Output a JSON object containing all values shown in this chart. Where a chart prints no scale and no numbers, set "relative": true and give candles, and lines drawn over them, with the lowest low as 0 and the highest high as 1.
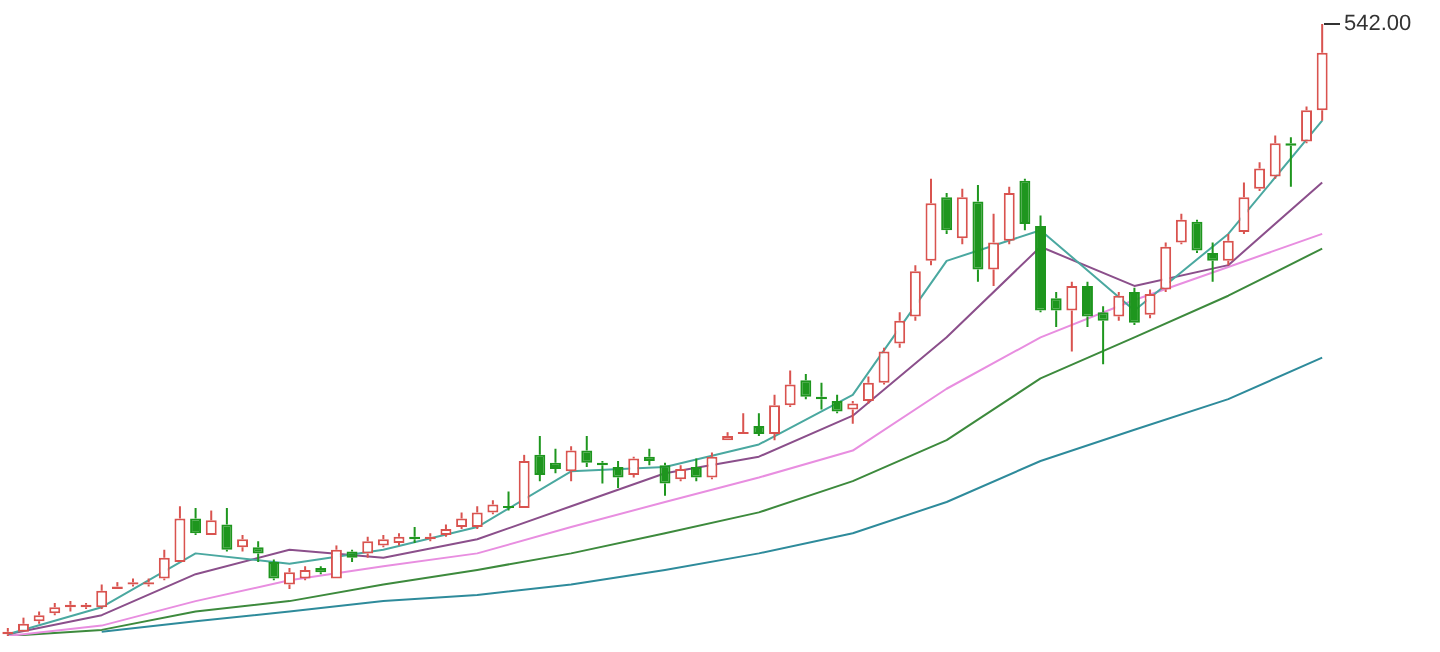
{
  "chart_data": {
    "type": "candlestick",
    "relative": true,
    "categories": [
      null,
      null,
      null,
      null,
      null,
      null,
      null,
      null,
      null,
      null,
      null,
      null,
      null,
      null,
      null,
      null,
      null,
      null,
      null,
      null,
      null,
      null,
      null,
      null,
      null,
      null,
      null,
      null,
      null,
      null,
      null,
      null,
      null,
      null,
      null,
      null,
      null,
      null,
      null,
      null,
      null,
      null,
      null,
      null,
      null,
      null,
      null,
      null,
      null,
      null,
      null,
      null,
      null,
      null,
      null,
      null,
      null,
      null,
      null,
      null,
      null,
      null,
      null,
      null,
      null,
      null,
      null,
      null,
      null,
      null,
      null,
      null,
      null,
      null,
      null,
      null,
      null,
      null,
      null,
      null,
      null,
      null,
      null,
      null,
      null
    ],
    "series": [
      {
        "ohlc": [
          [
            0.003,
            0.013,
            0,
            0.007
          ],
          [
            0.007,
            0.03,
            0.007,
            0.02
          ],
          [
            0.024,
            0.04,
            0.02,
            0.034
          ],
          [
            0.037,
            0.054,
            0.034,
            0.047
          ],
          [
            0.047,
            0.057,
            0.04,
            0.051
          ],
          [
            0.047,
            0.054,
            0.044,
            0.051
          ],
          [
            0.047,
            0.084,
            0.044,
            0.074
          ],
          [
            0.077,
            0.088,
            0.077,
            0.081
          ],
          [
            0.084,
            0.094,
            0.081,
            0.088
          ],
          [
            0.084,
            0.094,
            0.081,
            0.088
          ],
          [
            0.094,
            0.141,
            0.091,
            0.128
          ],
          [
            0.121,
            0.212,
            0.121,
            0.192
          ],
          [
            0.192,
            0.209,
            0.165,
            0.168
          ],
          [
            0.165,
            0.205,
            0.165,
            0.189
          ],
          [
            0.182,
            0.209,
            0.138,
            0.141
          ],
          [
            0.145,
            0.165,
            0.138,
            0.158
          ],
          [
            0.145,
            0.155,
            0.121,
            0.135
          ],
          [
            0.121,
            0.125,
            0.091,
            0.094
          ],
          [
            0.084,
            0.111,
            0.077,
            0.104
          ],
          [
            0.094,
            0.114,
            0.091,
            0.108
          ],
          [
            0.111,
            0.114,
            0.101,
            0.104
          ],
          [
            0.094,
            0.148,
            0.094,
            0.141
          ],
          [
            0.138,
            0.141,
            0.121,
            0.128
          ],
          [
            0.135,
            0.162,
            0.128,
            0.155
          ],
          [
            0.148,
            0.165,
            0.145,
            0.158
          ],
          [
            0.152,
            0.168,
            0.148,
            0.162
          ],
          [
            0.162,
            0.178,
            0.152,
            0.158
          ],
          [
            0.158,
            0.168,
            0.155,
            0.162
          ],
          [
            0.165,
            0.182,
            0.162,
            0.175
          ],
          [
            0.178,
            0.202,
            0.175,
            0.192
          ],
          [
            0.178,
            0.212,
            0.175,
            0.202
          ],
          [
            0.202,
            0.222,
            0.199,
            0.215
          ],
          [
            0.212,
            0.236,
            0.205,
            0.209
          ],
          [
            0.209,
            0.296,
            0.209,
            0.286
          ],
          [
            0.296,
            0.327,
            0.253,
            0.263
          ],
          [
            0.283,
            0.306,
            0.266,
            0.273
          ],
          [
            0.269,
            0.31,
            0.253,
            0.303
          ],
          [
            0.303,
            0.327,
            0.276,
            0.283
          ],
          [
            0.283,
            0.286,
            0.249,
            0.279
          ],
          [
            0.276,
            0.286,
            0.242,
            0.259
          ],
          [
            0.263,
            0.293,
            0.259,
            0.29
          ],
          [
            0.293,
            0.306,
            0.279,
            0.286
          ],
          [
            0.279,
            0.283,
            0.229,
            0.249
          ],
          [
            0.256,
            0.279,
            0.253,
            0.273
          ],
          [
            0.276,
            0.29,
            0.253,
            0.259
          ],
          [
            0.259,
            0.3,
            0.256,
            0.293
          ],
          [
            0.32,
            0.333,
            0.32,
            0.327
          ],
          [
            0.33,
            0.364,
            0.33,
            0.333
          ],
          [
            0.343,
            0.364,
            0.327,
            0.33
          ],
          [
            0.33,
            0.394,
            0.32,
            0.377
          ],
          [
            0.377,
            0.434,
            0.374,
            0.411
          ],
          [
            0.418,
            0.428,
            0.387,
            0.391
          ],
          [
            0.391,
            0.414,
            0.37,
            0.387
          ],
          [
            0.384,
            0.394,
            0.364,
            0.367
          ],
          [
            0.37,
            0.384,
            0.347,
            0.38
          ],
          [
            0.384,
            0.424,
            0.38,
            0.414
          ],
          [
            0.414,
            0.471,
            0.411,
            0.465
          ],
          [
            0.478,
            0.529,
            0.471,
            0.515
          ],
          [
            0.522,
            0.606,
            0.515,
            0.596
          ],
          [
            0.613,
            0.747,
            0.606,
            0.707
          ],
          [
            0.717,
            0.724,
            0.657,
            0.663
          ],
          [
            0.65,
            0.731,
            0.64,
            0.717
          ],
          [
            0.71,
            0.737,
            0.579,
            0.599
          ],
          [
            0.599,
            0.69,
            0.572,
            0.643
          ],
          [
            0.646,
            0.734,
            0.64,
            0.724
          ],
          [
            0.744,
            0.747,
            0.663,
            0.673
          ],
          [
            0.67,
            0.687,
            0.529,
            0.532
          ],
          [
            0.552,
            0.562,
            0.505,
            0.532
          ],
          [
            0.532,
            0.579,
            0.465,
            0.572
          ],
          [
            0.572,
            0.579,
            0.505,
            0.522
          ],
          [
            0.529,
            0.539,
            0.444,
            0.515
          ],
          [
            0.522,
            0.562,
            0.515,
            0.556
          ],
          [
            0.562,
            0.569,
            0.508,
            0.512
          ],
          [
            0.525,
            0.566,
            0.519,
            0.559
          ],
          [
            0.566,
            0.643,
            0.562,
            0.636
          ],
          [
            0.643,
            0.69,
            0.64,
            0.68
          ],
          [
            0.677,
            0.68,
            0.626,
            0.63
          ],
          [
            0.626,
            0.643,
            0.579,
            0.613
          ],
          [
            0.613,
            0.657,
            0.606,
            0.646
          ],
          [
            0.66,
            0.741,
            0.657,
            0.717
          ],
          [
            0.731,
            0.774,
            0.727,
            0.764
          ],
          [
            0.751,
            0.818,
            0.747,
            0.805
          ],
          [
            0.805,
            0.815,
            0.734,
            0.801
          ],
          [
            0.808,
            0.865,
            0.805,
            0.859
          ],
          [
            0.859,
            1,
            0.842,
            0.953
          ]
        ],
        "colors": [
          "#d9534f",
          "#d9534f",
          "#d9534f",
          "#d9534f",
          "#d9534f",
          "#d9534f",
          "#d9534f",
          "#d9534f",
          "#d9534f",
          "#d9534f",
          "#d9534f",
          "#d9534f",
          "#1e961e",
          "#d9534f",
          "#1e961e",
          "#d9534f",
          "#1e961e",
          "#1e961e",
          "#d9534f",
          "#d9534f",
          "#1e961e",
          "#d9534f",
          "#1e961e",
          "#d9534f",
          "#d9534f",
          "#d9534f",
          "#1e961e",
          "#d9534f",
          "#d9534f",
          "#d9534f",
          "#d9534f",
          "#d9534f",
          "#1e961e",
          "#d9534f",
          "#1e961e",
          "#1e961e",
          "#d9534f",
          "#1e961e",
          "#1e961e",
          "#1e961e",
          "#d9534f",
          "#1e961e",
          "#1e961e",
          "#d9534f",
          "#1e961e",
          "#d9534f",
          "#d9534f",
          "#d9534f",
          "#1e961e",
          "#d9534f",
          "#d9534f",
          "#1e961e",
          "#1e961e",
          "#1e961e",
          "#d9534f",
          "#d9534f",
          "#d9534f",
          "#d9534f",
          "#d9534f",
          "#d9534f",
          "#1e961e",
          "#d9534f",
          "#1e961e",
          "#d9534f",
          "#d9534f",
          "#1e961e",
          "#1e961e",
          "#1e961e",
          "#d9534f",
          "#1e961e",
          "#1e961e",
          "#d9534f",
          "#1e961e",
          "#d9534f",
          "#d9534f",
          "#d9534f",
          "#1e961e",
          "#1e961e",
          "#d9534f",
          "#d9534f",
          "#d9534f",
          "#d9534f",
          "#1e961e",
          "#d9534f",
          "#d9534f"
        ]
      },
      {
        "type": "line",
        "color": "#4aa8a0",
        "values": [
          0.003,
          null,
          null,
          null,
          null,
          null,
          0.047,
          null,
          null,
          null,
          null,
          null,
          0.135,
          null,
          null,
          null,
          null,
          null,
          0.118,
          null,
          null,
          null,
          null,
          null,
          0.141,
          null,
          null,
          null,
          null,
          null,
          0.178,
          null,
          null,
          null,
          null,
          null,
          0.269,
          null,
          null,
          null,
          null,
          null,
          0.276,
          null,
          null,
          null,
          null,
          null,
          0.313,
          null,
          null,
          null,
          null,
          null,
          0.394,
          null,
          null,
          null,
          null,
          null,
          0.613,
          null,
          null,
          null,
          null,
          null,
          0.663,
          null,
          null,
          null,
          null,
          null,
          0.532,
          null,
          null,
          null,
          null,
          null,
          0.657,
          null,
          null,
          null,
          null,
          null,
          0.842
        ]
      },
      {
        "type": "line",
        "color": "#8b4f8b",
        "values": [
          0.003,
          null,
          null,
          null,
          null,
          null,
          0.034,
          null,
          null,
          null,
          null,
          null,
          0.101,
          null,
          null,
          null,
          null,
          null,
          0.141,
          null,
          null,
          null,
          null,
          null,
          0.128,
          null,
          null,
          null,
          null,
          null,
          0.158,
          null,
          null,
          null,
          null,
          null,
          0.212,
          null,
          null,
          null,
          null,
          null,
          0.266,
          null,
          null,
          null,
          null,
          null,
          0.293,
          null,
          null,
          null,
          null,
          null,
          0.36,
          null,
          null,
          null,
          null,
          null,
          0.488,
          null,
          null,
          null,
          null,
          null,
          0.636,
          null,
          null,
          null,
          null,
          null,
          0.572,
          null,
          null,
          null,
          null,
          null,
          0.606,
          null,
          null,
          null,
          null,
          null,
          0.741
        ]
      },
      {
        "type": "line",
        "color": "#e88ee0",
        "values": [
          0,
          null,
          null,
          null,
          null,
          null,
          0.017,
          null,
          null,
          null,
          null,
          null,
          0.057,
          null,
          null,
          null,
          null,
          null,
          0.091,
          null,
          null,
          null,
          null,
          null,
          0.114,
          null,
          null,
          null,
          null,
          null,
          0.135,
          null,
          null,
          null,
          null,
          null,
          0.178,
          null,
          null,
          null,
          null,
          null,
          0.219,
          null,
          null,
          null,
          null,
          null,
          0.259,
          null,
          null,
          null,
          null,
          null,
          0.303,
          null,
          null,
          null,
          null,
          null,
          0.404,
          null,
          null,
          null,
          null,
          null,
          0.488,
          null,
          null,
          null,
          null,
          null,
          0.549,
          null,
          null,
          null,
          null,
          null,
          0.603,
          null,
          null,
          null,
          null,
          null,
          0.657
        ]
      },
      {
        "type": "line",
        "color": "#3d8a3d",
        "values": [
          0,
          null,
          null,
          null,
          null,
          null,
          0.01,
          null,
          null,
          null,
          null,
          null,
          0.04,
          null,
          null,
          null,
          null,
          null,
          0.057,
          null,
          null,
          null,
          null,
          null,
          0.084,
          null,
          null,
          null,
          null,
          null,
          0.108,
          null,
          null,
          null,
          null,
          null,
          0.135,
          null,
          null,
          null,
          null,
          null,
          0.168,
          null,
          null,
          null,
          null,
          null,
          0.202,
          null,
          null,
          null,
          null,
          null,
          0.253,
          null,
          null,
          null,
          null,
          null,
          0.32,
          null,
          null,
          null,
          null,
          null,
          0.421,
          null,
          null,
          null,
          null,
          null,
          0.488,
          null,
          null,
          null,
          null,
          null,
          0.556,
          null,
          null,
          null,
          null,
          null,
          0.633
        ]
      },
      {
        "type": "line",
        "color": "#2e8b9b",
        "values": [
          null,
          null,
          null,
          null,
          null,
          null,
          0.007,
          null,
          null,
          null,
          null,
          null,
          0.024,
          null,
          null,
          null,
          null,
          null,
          0.04,
          null,
          null,
          null,
          null,
          null,
          0.057,
          null,
          null,
          null,
          null,
          null,
          0.067,
          null,
          null,
          null,
          null,
          null,
          0.084,
          null,
          null,
          null,
          null,
          null,
          0.108,
          null,
          null,
          null,
          null,
          null,
          0.135,
          null,
          null,
          null,
          null,
          null,
          0.168,
          null,
          null,
          null,
          null,
          null,
          0.219,
          null,
          null,
          null,
          null,
          null,
          0.286,
          null,
          null,
          null,
          null,
          null,
          0.337,
          null,
          null,
          null,
          null,
          null,
          0.387,
          null,
          null,
          null,
          null,
          null,
          0.455
        ]
      }
    ],
    "annotations": [
      "542.00"
    ]
  }
}
